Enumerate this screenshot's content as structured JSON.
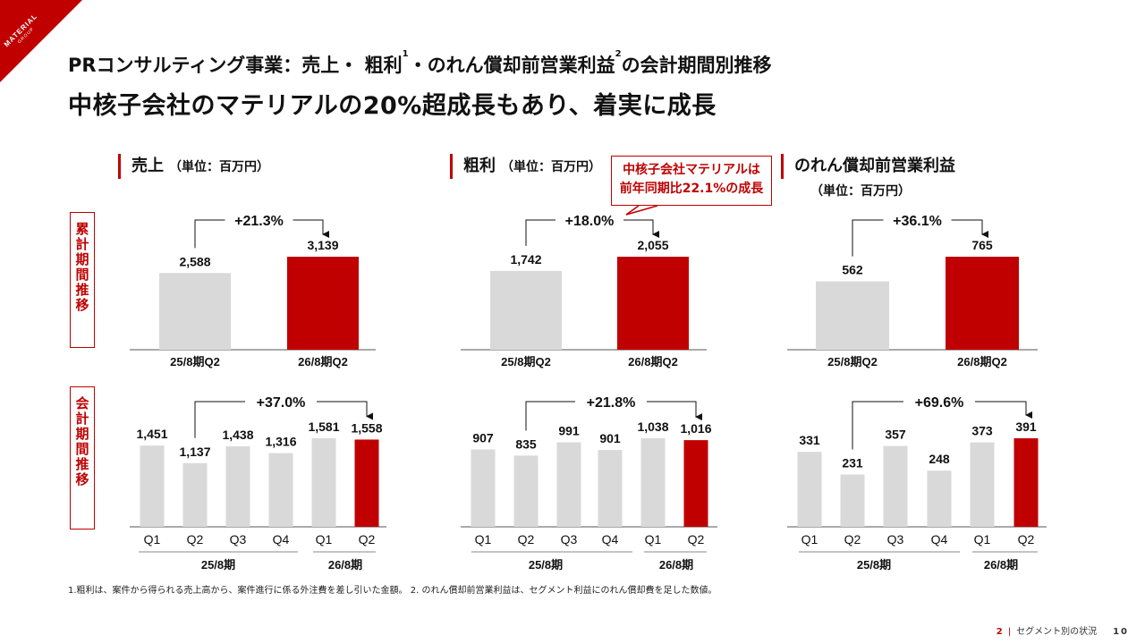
{
  "logo": {
    "main": "MATERIAL",
    "sub": "GROUP"
  },
  "title": {
    "line1_a": "PRコンサルティング事業：売上・ 粗利",
    "sup1": "1",
    "line1_b": "・のれん償却前営業利益",
    "sup2": "2",
    "line1_c": "の会計期間別推移",
    "line2": "中核子会社のマテリアルの20%超成長もあり、着実に成長"
  },
  "sections": [
    {
      "name": "売上",
      "unit": "（単位：百万円）"
    },
    {
      "name": "粗利",
      "unit": "（単位：百万円）"
    },
    {
      "name": "のれん償却前営業利益",
      "unit": "（単位：百万円）"
    }
  ],
  "row_labels": {
    "cumulative": [
      "累",
      "計",
      "期",
      "間",
      "推",
      "移"
    ],
    "quarterly": [
      "会",
      "計",
      "期",
      "間",
      "推",
      "移"
    ]
  },
  "callout": {
    "line1": "中核子会社マテリアルは",
    "line2": "前年同期比22.1%の成長"
  },
  "colors": {
    "accent": "#c00000",
    "gray_bar": "#d9d9d9"
  },
  "chart_data": [
    {
      "type": "bar",
      "section": "売上",
      "view": "cumulative",
      "categories": [
        "25/8期Q2",
        "26/8期Q2"
      ],
      "values": [
        2588,
        3139
      ],
      "labels": [
        "2,588",
        "3,139"
      ],
      "growth": "+21.3%"
    },
    {
      "type": "bar",
      "section": "粗利",
      "view": "cumulative",
      "categories": [
        "25/8期Q2",
        "26/8期Q2"
      ],
      "values": [
        1742,
        2055
      ],
      "labels": [
        "1,742",
        "2,055"
      ],
      "growth": "+18.0%"
    },
    {
      "type": "bar",
      "section": "のれん償却前営業利益",
      "view": "cumulative",
      "categories": [
        "25/8期Q2",
        "26/8期Q2"
      ],
      "values": [
        562,
        765
      ],
      "labels": [
        "562",
        "765"
      ],
      "growth": "+36.1%"
    },
    {
      "type": "bar",
      "section": "売上",
      "view": "quarterly",
      "categories": [
        "Q1",
        "Q2",
        "Q3",
        "Q4",
        "Q1",
        "Q2"
      ],
      "values": [
        1451,
        1137,
        1438,
        1316,
        1581,
        1558
      ],
      "labels": [
        "1,451",
        "1,137",
        "1,438",
        "1,316",
        "1,581",
        "1,558"
      ],
      "growth": "+37.0%",
      "groups": [
        "25/8期",
        "26/8期"
      ]
    },
    {
      "type": "bar",
      "section": "粗利",
      "view": "quarterly",
      "categories": [
        "Q1",
        "Q2",
        "Q3",
        "Q4",
        "Q1",
        "Q2"
      ],
      "values": [
        907,
        835,
        991,
        901,
        1038,
        1016
      ],
      "labels": [
        "907",
        "835",
        "991",
        "901",
        "1,038",
        "1,016"
      ],
      "growth": "+21.8%",
      "groups": [
        "25/8期",
        "26/8期"
      ]
    },
    {
      "type": "bar",
      "section": "のれん償却前営業利益",
      "view": "quarterly",
      "categories": [
        "Q1",
        "Q2",
        "Q3",
        "Q4",
        "Q1",
        "Q2"
      ],
      "values": [
        331,
        231,
        357,
        248,
        373,
        391
      ],
      "labels": [
        "331",
        "231",
        "357",
        "248",
        "373",
        "391"
      ],
      "growth": "+69.6%",
      "groups": [
        "25/8期",
        "26/8期"
      ]
    }
  ],
  "footnote": "1.粗利は、案件から得られる売上高から、案件進行に係る外注費を差し引いた金額。 2. のれん償却前営業利益は、セグメント利益にのれん償却費を足した数値。",
  "pager": {
    "section_no": "2",
    "section_name": "セグメント別の状況",
    "page": "10"
  }
}
